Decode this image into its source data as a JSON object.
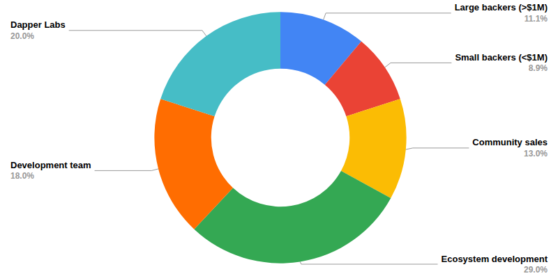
{
  "chart_data": {
    "type": "pie",
    "categories": [
      "Large backers (>$1M)",
      "Small backers (<$1M)",
      "Community sales",
      "Ecosystem development",
      "Development team",
      "Dapper Labs"
    ],
    "values": [
      11.1,
      8.9,
      13.0,
      29.0,
      18.0,
      20.0
    ],
    "value_labels": [
      "11.1%",
      "8.9%",
      "13.0%",
      "29.0%",
      "18.0%",
      "20.0%"
    ],
    "colors": [
      "#4285f4",
      "#ea4335",
      "#fbbc04",
      "#34a853",
      "#ff6d01",
      "#46bdc6"
    ],
    "data_labels": true
  }
}
